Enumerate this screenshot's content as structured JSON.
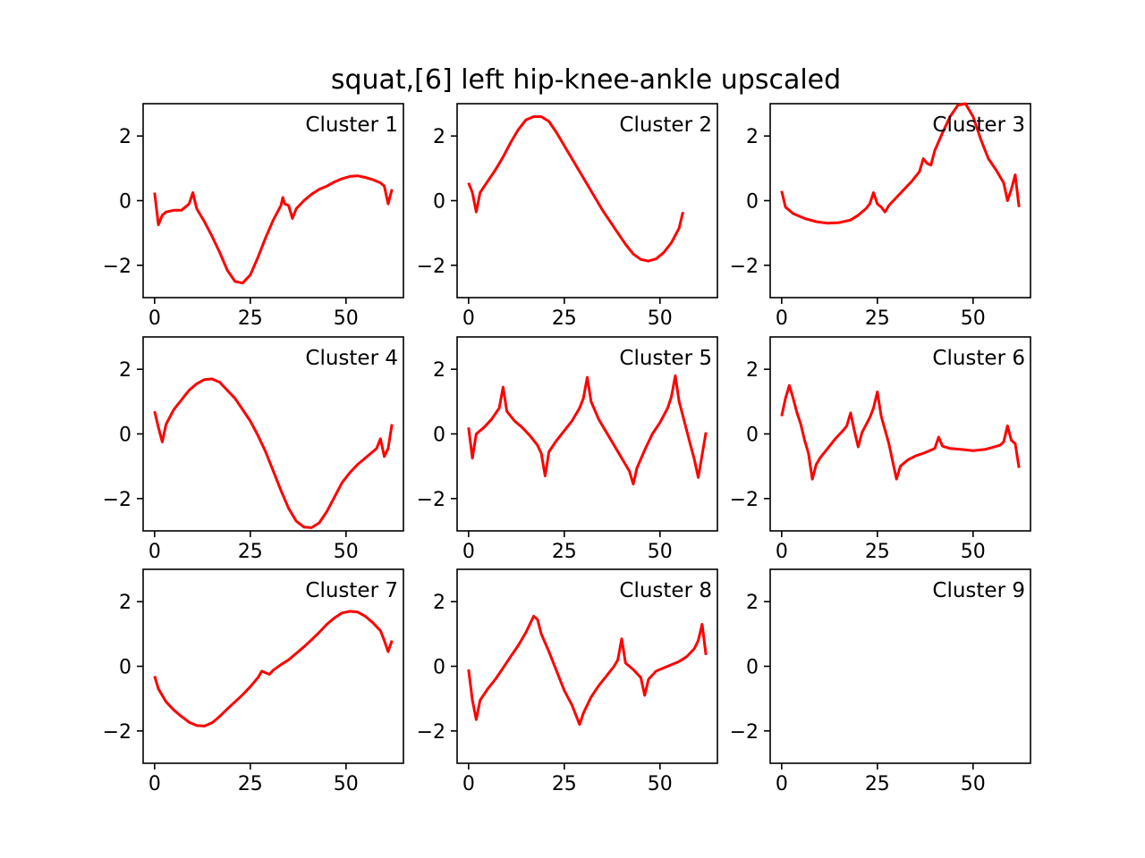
{
  "figure": {
    "title": "squat,[6] left hip-knee-ankle upscaled"
  },
  "chart_data": {
    "type": "line",
    "title": "squat,[6] left hip-knee-ankle upscaled",
    "grid": false,
    "layout": "3x3 subplots",
    "line_color": "#ff0000",
    "xlim": [
      -3,
      65
    ],
    "ylim": [
      -3,
      3
    ],
    "xticks": [
      0,
      25,
      50
    ],
    "yticks": [
      2,
      0,
      -2
    ],
    "xtick_labels": [
      "0",
      "25",
      "50"
    ],
    "ytick_labels": [
      "2",
      "0",
      "−2"
    ],
    "panels": [
      {
        "label": "Cluster 1",
        "points": [
          [
            0,
            0.25
          ],
          [
            1,
            -0.75
          ],
          [
            2,
            -0.45
          ],
          [
            3,
            -0.35
          ],
          [
            5,
            -0.3
          ],
          [
            7,
            -0.3
          ],
          [
            9,
            -0.1
          ],
          [
            10,
            0.25
          ],
          [
            11,
            -0.25
          ],
          [
            13,
            -0.65
          ],
          [
            15,
            -1.1
          ],
          [
            17,
            -1.6
          ],
          [
            19,
            -2.15
          ],
          [
            21,
            -2.5
          ],
          [
            23,
            -2.55
          ],
          [
            25,
            -2.3
          ],
          [
            27,
            -1.75
          ],
          [
            29,
            -1.15
          ],
          [
            31,
            -0.6
          ],
          [
            33,
            -0.15
          ],
          [
            33.5,
            0.1
          ],
          [
            34,
            -0.1
          ],
          [
            35,
            -0.15
          ],
          [
            36,
            -0.55
          ],
          [
            37,
            -0.25
          ],
          [
            39,
            0.0
          ],
          [
            41,
            0.2
          ],
          [
            43,
            0.35
          ],
          [
            45,
            0.45
          ],
          [
            47,
            0.58
          ],
          [
            49,
            0.68
          ],
          [
            51,
            0.75
          ],
          [
            53,
            0.77
          ],
          [
            55,
            0.72
          ],
          [
            57,
            0.65
          ],
          [
            59,
            0.55
          ],
          [
            60,
            0.45
          ],
          [
            61,
            -0.1
          ],
          [
            62,
            0.35
          ]
        ]
      },
      {
        "label": "Cluster 2",
        "points": [
          [
            0,
            0.55
          ],
          [
            1,
            0.25
          ],
          [
            2,
            -0.35
          ],
          [
            3,
            0.25
          ],
          [
            5,
            0.6
          ],
          [
            7,
            0.95
          ],
          [
            9,
            1.35
          ],
          [
            11,
            1.8
          ],
          [
            13,
            2.2
          ],
          [
            15,
            2.5
          ],
          [
            17,
            2.6
          ],
          [
            19,
            2.6
          ],
          [
            21,
            2.45
          ],
          [
            23,
            2.1
          ],
          [
            25,
            1.7
          ],
          [
            27,
            1.3
          ],
          [
            29,
            0.9
          ],
          [
            31,
            0.5
          ],
          [
            33,
            0.1
          ],
          [
            35,
            -0.3
          ],
          [
            37,
            -0.65
          ],
          [
            39,
            -1.0
          ],
          [
            41,
            -1.35
          ],
          [
            43,
            -1.65
          ],
          [
            45,
            -1.82
          ],
          [
            47,
            -1.87
          ],
          [
            49,
            -1.8
          ],
          [
            51,
            -1.6
          ],
          [
            53,
            -1.3
          ],
          [
            55,
            -0.85
          ],
          [
            56,
            -0.35
          ]
        ]
      },
      {
        "label": "Cluster 3",
        "points": [
          [
            0,
            0.3
          ],
          [
            1,
            -0.2
          ],
          [
            3,
            -0.4
          ],
          [
            6,
            -0.55
          ],
          [
            9,
            -0.65
          ],
          [
            12,
            -0.7
          ],
          [
            15,
            -0.68
          ],
          [
            18,
            -0.6
          ],
          [
            20,
            -0.45
          ],
          [
            22,
            -0.25
          ],
          [
            23,
            -0.1
          ],
          [
            24,
            0.25
          ],
          [
            25,
            -0.1
          ],
          [
            26,
            -0.2
          ],
          [
            27,
            -0.35
          ],
          [
            28,
            -0.15
          ],
          [
            30,
            0.1
          ],
          [
            32,
            0.35
          ],
          [
            34,
            0.6
          ],
          [
            36,
            0.9
          ],
          [
            37,
            1.3
          ],
          [
            38,
            1.15
          ],
          [
            39,
            1.1
          ],
          [
            40,
            1.55
          ],
          [
            42,
            2.1
          ],
          [
            44,
            2.6
          ],
          [
            46,
            2.95
          ],
          [
            48,
            3.0
          ],
          [
            50,
            2.6
          ],
          [
            52,
            1.9
          ],
          [
            54,
            1.3
          ],
          [
            56,
            0.95
          ],
          [
            58,
            0.55
          ],
          [
            59,
            0.0
          ],
          [
            60,
            0.35
          ],
          [
            61,
            0.8
          ],
          [
            62,
            -0.2
          ]
        ]
      },
      {
        "label": "Cluster 4",
        "points": [
          [
            0,
            0.7
          ],
          [
            1,
            0.2
          ],
          [
            2,
            -0.25
          ],
          [
            3,
            0.3
          ],
          [
            5,
            0.75
          ],
          [
            7,
            1.05
          ],
          [
            9,
            1.35
          ],
          [
            11,
            1.55
          ],
          [
            13,
            1.68
          ],
          [
            15,
            1.7
          ],
          [
            17,
            1.6
          ],
          [
            19,
            1.35
          ],
          [
            21,
            1.1
          ],
          [
            23,
            0.75
          ],
          [
            25,
            0.4
          ],
          [
            27,
            -0.05
          ],
          [
            29,
            -0.55
          ],
          [
            31,
            -1.15
          ],
          [
            33,
            -1.75
          ],
          [
            35,
            -2.3
          ],
          [
            37,
            -2.7
          ],
          [
            39,
            -2.88
          ],
          [
            41,
            -2.9
          ],
          [
            43,
            -2.75
          ],
          [
            45,
            -2.4
          ],
          [
            47,
            -1.95
          ],
          [
            49,
            -1.5
          ],
          [
            51,
            -1.2
          ],
          [
            53,
            -0.95
          ],
          [
            55,
            -0.75
          ],
          [
            57,
            -0.55
          ],
          [
            58,
            -0.45
          ],
          [
            59,
            -0.15
          ],
          [
            60,
            -0.7
          ],
          [
            61,
            -0.45
          ],
          [
            62,
            0.3
          ]
        ]
      },
      {
        "label": "Cluster 5",
        "points": [
          [
            0,
            0.2
          ],
          [
            1,
            -0.75
          ],
          [
            2,
            0.0
          ],
          [
            4,
            0.2
          ],
          [
            6,
            0.45
          ],
          [
            8,
            0.8
          ],
          [
            9,
            1.45
          ],
          [
            10,
            0.7
          ],
          [
            12,
            0.4
          ],
          [
            14,
            0.2
          ],
          [
            16,
            -0.05
          ],
          [
            18,
            -0.35
          ],
          [
            19,
            -0.6
          ],
          [
            20,
            -1.3
          ],
          [
            21,
            -0.55
          ],
          [
            23,
            -0.2
          ],
          [
            25,
            0.1
          ],
          [
            27,
            0.4
          ],
          [
            29,
            0.8
          ],
          [
            30,
            1.1
          ],
          [
            31,
            1.75
          ],
          [
            32,
            1.0
          ],
          [
            34,
            0.45
          ],
          [
            36,
            0.05
          ],
          [
            38,
            -0.35
          ],
          [
            40,
            -0.75
          ],
          [
            42,
            -1.15
          ],
          [
            43,
            -1.55
          ],
          [
            44,
            -1.05
          ],
          [
            46,
            -0.5
          ],
          [
            48,
            0.0
          ],
          [
            50,
            0.35
          ],
          [
            52,
            0.8
          ],
          [
            53,
            1.15
          ],
          [
            54,
            1.8
          ],
          [
            55,
            1.0
          ],
          [
            56,
            0.55
          ],
          [
            58,
            -0.35
          ],
          [
            59,
            -0.8
          ],
          [
            60,
            -1.35
          ],
          [
            61,
            -0.65
          ],
          [
            62,
            0.05
          ]
        ]
      },
      {
        "label": "Cluster 6",
        "points": [
          [
            0,
            0.55
          ],
          [
            1,
            1.1
          ],
          [
            2,
            1.5
          ],
          [
            3,
            1.1
          ],
          [
            4,
            0.65
          ],
          [
            5,
            0.3
          ],
          [
            6,
            -0.2
          ],
          [
            7,
            -0.6
          ],
          [
            8,
            -1.4
          ],
          [
            9,
            -0.95
          ],
          [
            10,
            -0.75
          ],
          [
            12,
            -0.45
          ],
          [
            14,
            -0.15
          ],
          [
            16,
            0.1
          ],
          [
            17,
            0.25
          ],
          [
            18,
            0.65
          ],
          [
            19,
            0.1
          ],
          [
            20,
            -0.4
          ],
          [
            21,
            0.05
          ],
          [
            23,
            0.5
          ],
          [
            24,
            0.8
          ],
          [
            25,
            1.3
          ],
          [
            26,
            0.55
          ],
          [
            28,
            -0.3
          ],
          [
            29,
            -0.85
          ],
          [
            30,
            -1.4
          ],
          [
            31,
            -1.0
          ],
          [
            33,
            -0.8
          ],
          [
            35,
            -0.68
          ],
          [
            37,
            -0.6
          ],
          [
            39,
            -0.5
          ],
          [
            40,
            -0.45
          ],
          [
            41,
            -0.1
          ],
          [
            42,
            -0.38
          ],
          [
            44,
            -0.45
          ],
          [
            47,
            -0.48
          ],
          [
            50,
            -0.52
          ],
          [
            53,
            -0.48
          ],
          [
            55,
            -0.42
          ],
          [
            57,
            -0.35
          ],
          [
            58,
            -0.25
          ],
          [
            59,
            0.25
          ],
          [
            60,
            -0.2
          ],
          [
            61,
            -0.3
          ],
          [
            62,
            -1.05
          ]
        ]
      },
      {
        "label": "Cluster 7",
        "points": [
          [
            0,
            -0.3
          ],
          [
            1,
            -0.7
          ],
          [
            3,
            -1.1
          ],
          [
            5,
            -1.35
          ],
          [
            7,
            -1.55
          ],
          [
            9,
            -1.73
          ],
          [
            11,
            -1.83
          ],
          [
            13,
            -1.85
          ],
          [
            15,
            -1.75
          ],
          [
            17,
            -1.55
          ],
          [
            19,
            -1.32
          ],
          [
            21,
            -1.1
          ],
          [
            23,
            -0.88
          ],
          [
            25,
            -0.63
          ],
          [
            27,
            -0.35
          ],
          [
            28,
            -0.15
          ],
          [
            29,
            -0.2
          ],
          [
            30,
            -0.25
          ],
          [
            31,
            -0.12
          ],
          [
            33,
            0.05
          ],
          [
            35,
            0.2
          ],
          [
            37,
            0.4
          ],
          [
            39,
            0.6
          ],
          [
            41,
            0.82
          ],
          [
            43,
            1.05
          ],
          [
            45,
            1.3
          ],
          [
            47,
            1.5
          ],
          [
            49,
            1.65
          ],
          [
            51,
            1.7
          ],
          [
            53,
            1.68
          ],
          [
            55,
            1.55
          ],
          [
            57,
            1.35
          ],
          [
            59,
            1.1
          ],
          [
            60,
            0.8
          ],
          [
            61,
            0.45
          ],
          [
            62,
            0.8
          ]
        ]
      },
      {
        "label": "Cluster 8",
        "points": [
          [
            0,
            -0.1
          ],
          [
            1,
            -1.05
          ],
          [
            2,
            -1.65
          ],
          [
            3,
            -1.05
          ],
          [
            5,
            -0.7
          ],
          [
            7,
            -0.4
          ],
          [
            9,
            -0.05
          ],
          [
            11,
            0.3
          ],
          [
            13,
            0.65
          ],
          [
            15,
            1.05
          ],
          [
            16,
            1.3
          ],
          [
            17,
            1.55
          ],
          [
            18,
            1.45
          ],
          [
            19,
            1.0
          ],
          [
            21,
            0.45
          ],
          [
            23,
            -0.15
          ],
          [
            25,
            -0.75
          ],
          [
            27,
            -1.2
          ],
          [
            28,
            -1.5
          ],
          [
            29,
            -1.8
          ],
          [
            30,
            -1.45
          ],
          [
            32,
            -0.95
          ],
          [
            34,
            -0.6
          ],
          [
            36,
            -0.3
          ],
          [
            38,
            0.0
          ],
          [
            39,
            0.2
          ],
          [
            40,
            0.85
          ],
          [
            41,
            0.1
          ],
          [
            43,
            -0.1
          ],
          [
            45,
            -0.35
          ],
          [
            46,
            -0.9
          ],
          [
            47,
            -0.4
          ],
          [
            49,
            -0.15
          ],
          [
            51,
            -0.05
          ],
          [
            53,
            0.05
          ],
          [
            55,
            0.15
          ],
          [
            57,
            0.3
          ],
          [
            59,
            0.55
          ],
          [
            60,
            0.8
          ],
          [
            61,
            1.3
          ],
          [
            62,
            0.35
          ]
        ]
      },
      {
        "label": "Cluster 9",
        "points": []
      }
    ]
  }
}
